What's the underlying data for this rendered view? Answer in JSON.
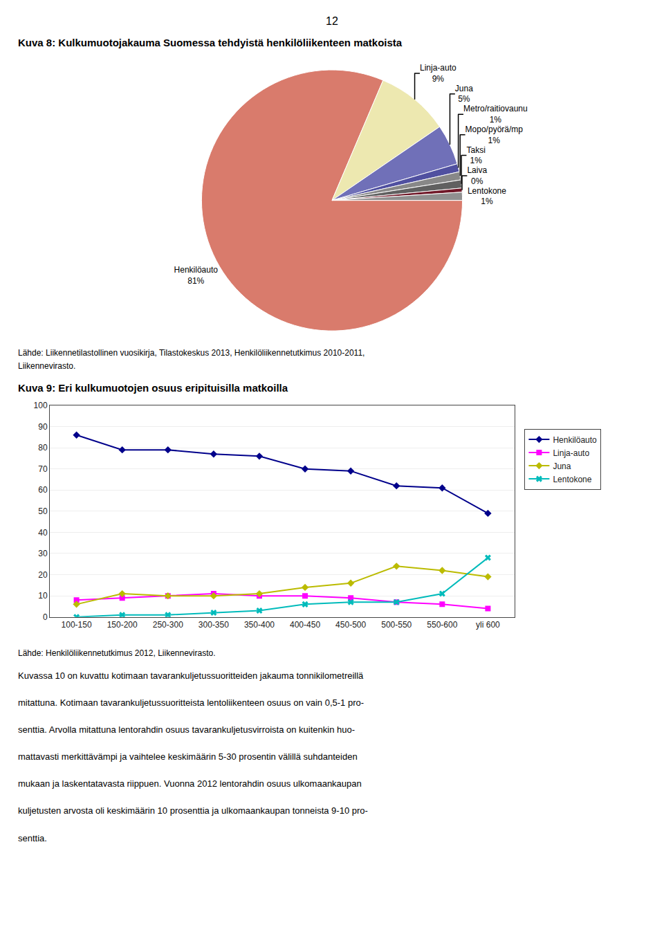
{
  "page_number": "12",
  "body_text": [
    "Kuvassa 10 on kuvattu kotimaan tavarankuljetussuoritteiden jakauma tonnikilometreillä",
    "mitattuna. Kotimaan tavarankuljetussuoritteista lentoliikenteen osuus on vain 0,5-1 pro-",
    "senttia. Arvolla mitattuna lentorahdin osuus tavarankuljetusvirroista on kuitenkin huo-",
    "mattavasti merkittävämpi ja vaihtelee keskimäärin 5-30 prosentin välillä suhdanteiden",
    "mukaan ja laskentatavasta riippuen. Vuonna 2012 lentorahdin osuus ulkomaankaupan",
    "kuljetusten arvosta oli keskimäärin 10 prosenttia ja ulkomaankaupan tonneista 9-10 pro-",
    "senttia."
  ],
  "chart_data": [
    {
      "type": "pie",
      "title": "Kuva 8: Kulkumuotojakauma Suomessa tehdyistä henkilöliikenteen matkoista",
      "source": [
        "Lähde: Liikennetilastollinen vuosikirja, Tilastokeskus 2013, Henkilöliikennetutkimus 2010-2011,",
        "Liikennevirasto."
      ],
      "categories": [
        "Henkilöauto",
        "Linja-auto",
        "Juna",
        "Metro/raitiovaunu",
        "Mopo/pyörä/mp",
        "Taksi",
        "Laiva",
        "Lentokone"
      ],
      "values": [
        81,
        9,
        5,
        1,
        1,
        1,
        0.5,
        1
      ],
      "value_labels": [
        "81%",
        "9%",
        "5%",
        "1%",
        "1%",
        "1%",
        "0%",
        "1%"
      ],
      "colors": [
        "#D97B6C",
        "#EDE8B0",
        "#7070B8",
        "#5050A0",
        "#888888",
        "#606060",
        "#701828",
        "#909090"
      ],
      "data_labels": true
    },
    {
      "type": "line",
      "title": "Kuva 9: Eri kulkumuotojen osuus eripituisilla matkoilla",
      "source": [
        "Lähde: Henkilöliikennetutkimus 2012, Liikennevirasto."
      ],
      "categories": [
        "100-150",
        "150-200",
        "250-300",
        "300-350",
        "350-400",
        "400-450",
        "450-500",
        "500-550",
        "550-600",
        "yli 600"
      ],
      "series": [
        {
          "name": "Henkilöauto",
          "color": "#00008B",
          "marker": "diamond",
          "values": [
            86,
            79,
            79,
            77,
            76,
            70,
            69,
            62,
            61,
            49
          ]
        },
        {
          "name": "Linja-auto",
          "color": "#FF00FF",
          "marker": "square",
          "values": [
            8,
            9,
            10,
            11,
            10,
            10,
            9,
            7,
            6,
            4
          ]
        },
        {
          "name": "Juna",
          "color": "#BBBB00",
          "marker": "diamond",
          "values": [
            6,
            11,
            10,
            10,
            11,
            14,
            16,
            24,
            22,
            19
          ]
        },
        {
          "name": "Lentokone",
          "color": "#00BBBB",
          "marker": "x",
          "values": [
            0,
            1,
            1,
            2,
            3,
            6,
            7,
            7,
            11,
            28
          ]
        }
      ],
      "ylim": [
        0,
        100
      ],
      "yticks": [
        0,
        10,
        20,
        30,
        40,
        50,
        60,
        70,
        80,
        90,
        100
      ],
      "grid": true,
      "legend": "right"
    }
  ]
}
